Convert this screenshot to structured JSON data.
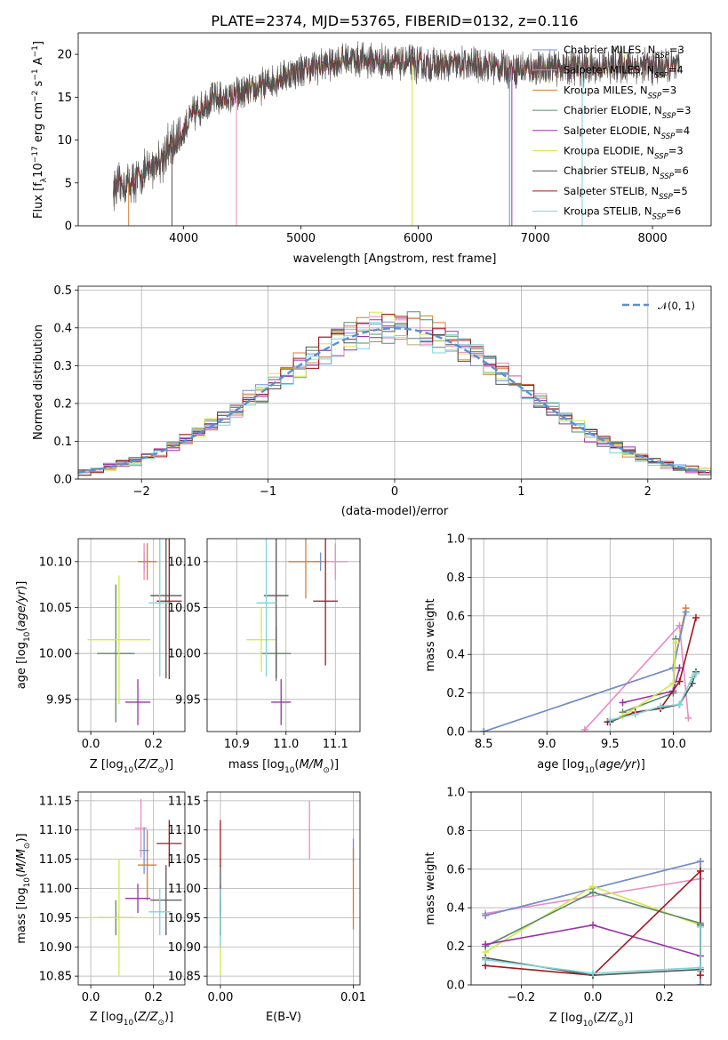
{
  "title": "PLATE=2374, MJD=53765, FIBERID=0132, z=0.116",
  "colors": {
    "Chabrier MILES": "#6f8fd6",
    "Salpeter MILES": "#e88cc5",
    "Kroupa MILES": "#d67f2e",
    "Chabrier ELODIE": "#5b8a6b",
    "Salpeter ELODIE": "#9933aa",
    "Kroupa ELODIE": "#d4e84a",
    "Chabrier STELIB": "#555555",
    "Salpeter STELIB": "#a01820",
    "Kroupa STELIB": "#7fd3d8"
  },
  "chart_data": [
    {
      "id": "spectrum",
      "type": "line",
      "title": "PLATE=2374, MJD=53765, FIBERID=0132, z=0.116",
      "xlabel": "wavelength [Angstrom, rest frame]",
      "ylabel": "Flux [f_λ 10^-17 erg cm^-2 s^-1 A^-1]",
      "xlim": [
        3100,
        8500
      ],
      "ylim": [
        0,
        22.5
      ],
      "xticks": [
        4000,
        5000,
        6000,
        7000,
        8000
      ],
      "yticks": [
        0,
        5,
        10,
        15,
        20
      ],
      "legend_position": "top-right",
      "legend": [
        {
          "name": "Chabrier MILES",
          "nssp": "3"
        },
        {
          "name": "Salpeter MILES",
          "nssp": "4"
        },
        {
          "name": "Kroupa MILES",
          "nssp": "3"
        },
        {
          "name": "Chabrier ELODIE",
          "nssp": "3"
        },
        {
          "name": "Salpeter ELODIE",
          "nssp": "4"
        },
        {
          "name": "Kroupa ELODIE",
          "nssp": "3"
        },
        {
          "name": "Chabrier STELIB",
          "nssp": "6"
        },
        {
          "name": "Salpeter STELIB",
          "nssp": "5"
        },
        {
          "name": "Kroupa STELIB",
          "nssp": "6"
        }
      ],
      "envelope": {
        "x": [
          3400,
          3550,
          3700,
          3850,
          3950,
          4050,
          4200,
          4400,
          4600,
          4800,
          5000,
          5200,
          5400,
          5600,
          5800,
          6000,
          6200,
          6400,
          6600,
          6800,
          7000,
          7200,
          7400,
          7600,
          7800,
          8000,
          8200
        ],
        "y": [
          4.5,
          5.0,
          6.5,
          8.5,
          10.0,
          12.5,
          14.5,
          15.0,
          15.8,
          17.2,
          18.2,
          18.8,
          19.5,
          19.3,
          19.0,
          18.8,
          18.6,
          18.8,
          18.7,
          18.3,
          18.3,
          18.5,
          18.4,
          18.6,
          18.8,
          18.5,
          18.4
        ]
      },
      "drops": [
        3530,
        3900,
        4450,
        5950,
        6780,
        6800,
        7400
      ]
    },
    {
      "id": "residuals",
      "type": "line",
      "xlabel": "(data-model)/error",
      "ylabel": "Normed distribution",
      "xlim": [
        -2.5,
        2.5
      ],
      "ylim": [
        0,
        0.51
      ],
      "xticks": [
        -2,
        -1,
        0,
        1,
        2
      ],
      "yticks": [
        0.0,
        0.1,
        0.2,
        0.3,
        0.4,
        0.5
      ],
      "grid": true,
      "legend_position": "top-right",
      "legend": [
        "𝒩(0, 1)"
      ],
      "bins": 50
    },
    {
      "id": "age-vs-Z",
      "type": "scatter",
      "xlabel": "Z [log10(Z/Z⊙)]",
      "ylabel": "age [log10(age/yr)]",
      "xlim": [
        -0.04,
        0.3
      ],
      "ylim": [
        9.915,
        10.125
      ],
      "xticks": [
        0.0,
        0.2
      ],
      "yticks": [
        9.95,
        10.0,
        10.05,
        10.1
      ],
      "grid": true,
      "points": [
        {
          "series": "Chabrier MILES",
          "x": 0.17,
          "y": 10.1,
          "xerr": 0.03,
          "yerr": 0.01
        },
        {
          "series": "Salpeter MILES",
          "x": 0.17,
          "y": 10.1,
          "xerr": 0.04,
          "yerr": 0.02
        },
        {
          "series": "Kroupa MILES",
          "x": 0.18,
          "y": 10.1,
          "xerr": 0.06,
          "yerr": 0.02
        },
        {
          "series": "Chabrier ELODIE",
          "x": 0.08,
          "y": 10.0,
          "xerr": 0.12,
          "yerr": 0.075
        },
        {
          "series": "Salpeter ELODIE",
          "x": 0.15,
          "y": 9.947,
          "xerr": 0.08,
          "yerr": 0.025
        },
        {
          "series": "Kroupa ELODIE",
          "x": 0.09,
          "y": 10.015,
          "xerr": 0.2,
          "yerr": 0.07
        },
        {
          "series": "Chabrier STELIB",
          "x": 0.24,
          "y": 10.063,
          "xerr": 0.1,
          "yerr": 0.09
        },
        {
          "series": "Salpeter STELIB",
          "x": 0.25,
          "y": 10.057,
          "xerr": 0.08,
          "yerr": 0.085
        },
        {
          "series": "Kroupa STELIB",
          "x": 0.22,
          "y": 10.055,
          "xerr": 0.07,
          "yerr": 0.08
        }
      ]
    },
    {
      "id": "age-vs-mass",
      "type": "scatter",
      "xlabel": "mass [log10(M/M⊙)]",
      "ylabel": "",
      "xlim": [
        10.84,
        11.15
      ],
      "ylim": [
        9.915,
        10.125
      ],
      "xticks": [
        10.9,
        11.0,
        11.1
      ],
      "yticks": [
        9.95,
        10.0,
        10.05,
        10.1
      ],
      "grid": true,
      "points": [
        {
          "series": "Chabrier MILES",
          "x": 11.07,
          "y": 10.1,
          "xerr": 0.02,
          "yerr": 0.01
        },
        {
          "series": "Salpeter MILES",
          "x": 11.1,
          "y": 10.1,
          "xerr": 0.05,
          "yerr": 0.02
        },
        {
          "series": "Kroupa MILES",
          "x": 11.04,
          "y": 10.1,
          "xerr": 0.07,
          "yerr": 0.04
        },
        {
          "series": "Chabrier ELODIE",
          "x": 10.98,
          "y": 10.0,
          "xerr": 0.06,
          "yerr": 0.03
        },
        {
          "series": "Salpeter ELODIE",
          "x": 10.99,
          "y": 9.947,
          "xerr": 0.04,
          "yerr": 0.025
        },
        {
          "series": "Kroupa ELODIE",
          "x": 10.95,
          "y": 10.015,
          "xerr": 0.06,
          "yerr": 0.035
        },
        {
          "series": "Chabrier STELIB",
          "x": 10.98,
          "y": 10.063,
          "xerr": 0.05,
          "yerr": 0.09
        },
        {
          "series": "Salpeter STELIB",
          "x": 11.08,
          "y": 10.057,
          "xerr": 0.05,
          "yerr": 0.07
        },
        {
          "series": "Kroupa STELIB",
          "x": 10.96,
          "y": 10.055,
          "xerr": 0.04,
          "yerr": 0.08
        }
      ]
    },
    {
      "id": "weight-vs-age",
      "type": "line",
      "xlabel": "age [log10(age/yr)]",
      "ylabel": "mass weight",
      "xlim": [
        8.4,
        10.3
      ],
      "ylim": [
        0.0,
        1.0
      ],
      "xticks": [
        8.5,
        9.0,
        9.5,
        10.0
      ],
      "yticks": [
        0.0,
        0.2,
        0.4,
        0.6,
        0.8,
        1.0
      ],
      "grid": true,
      "series": [
        {
          "name": "Salpeter MILES",
          "x": [
            9.3,
            10.05,
            10.12
          ],
          "y": [
            0.01,
            0.55,
            0.07
          ]
        },
        {
          "name": "Kroupa MILES",
          "x": [
            8.5,
            10.0,
            10.1
          ],
          "y": [
            0.0,
            0.33,
            0.64
          ]
        },
        {
          "name": "Chabrier MILES",
          "x": [
            8.5,
            10.0,
            10.1
          ],
          "y": [
            0.0,
            0.33,
            0.62
          ]
        },
        {
          "name": "Chabrier ELODIE",
          "x": [
            9.6,
            10.0,
            10.02
          ],
          "y": [
            0.1,
            0.2,
            0.48
          ]
        },
        {
          "name": "Salpeter ELODIE",
          "x": [
            9.6,
            10.0,
            10.05
          ],
          "y": [
            0.15,
            0.21,
            0.33
          ]
        },
        {
          "name": "Kroupa ELODIE",
          "x": [
            9.6,
            10.0,
            10.02
          ],
          "y": [
            0.08,
            0.25,
            0.46
          ]
        },
        {
          "name": "Chabrier STELIB",
          "x": [
            9.5,
            9.7,
            9.9,
            10.05,
            10.15,
            10.18
          ],
          "y": [
            0.05,
            0.1,
            0.12,
            0.14,
            0.25,
            0.31
          ]
        },
        {
          "name": "Salpeter STELIB",
          "x": [
            9.48,
            9.7,
            9.9,
            10.05,
            10.18
          ],
          "y": [
            0.05,
            0.1,
            0.12,
            0.26,
            0.59
          ]
        },
        {
          "name": "Kroupa STELIB",
          "x": [
            9.5,
            9.7,
            9.9,
            10.05,
            10.15,
            10.18
          ],
          "y": [
            0.06,
            0.09,
            0.13,
            0.14,
            0.28,
            0.3
          ]
        }
      ]
    },
    {
      "id": "mass-vs-Z",
      "type": "scatter",
      "xlabel": "Z [log10(Z/Z⊙)]",
      "ylabel": "mass [log10(M/M⊙)]",
      "xlim": [
        -0.04,
        0.3
      ],
      "ylim": [
        10.835,
        11.165
      ],
      "xticks": [
        0.0,
        0.2
      ],
      "yticks": [
        10.85,
        10.9,
        10.95,
        11.0,
        11.05,
        11.1,
        11.15
      ],
      "grid": true,
      "points": [
        {
          "series": "Chabrier MILES",
          "x": 0.17,
          "y": 11.065,
          "xerr": 0.03,
          "yerr": 0.04
        },
        {
          "series": "Salpeter MILES",
          "x": 0.16,
          "y": 11.103,
          "xerr": 0.04,
          "yerr": 0.05
        },
        {
          "series": "Kroupa MILES",
          "x": 0.18,
          "y": 11.04,
          "xerr": 0.06,
          "yerr": 0.06
        },
        {
          "series": "Chabrier ELODIE",
          "x": 0.08,
          "y": 10.95,
          "xerr": 0.12,
          "yerr": 0.03
        },
        {
          "series": "Salpeter ELODIE",
          "x": 0.15,
          "y": 10.983,
          "xerr": 0.08,
          "yerr": 0.025
        },
        {
          "series": "Kroupa ELODIE",
          "x": 0.09,
          "y": 10.95,
          "xerr": 0.2,
          "yerr": 0.1
        },
        {
          "series": "Chabrier STELIB",
          "x": 0.24,
          "y": 10.98,
          "xerr": 0.1,
          "yerr": 0.06
        },
        {
          "series": "Salpeter STELIB",
          "x": 0.25,
          "y": 11.077,
          "xerr": 0.08,
          "yerr": 0.04
        },
        {
          "series": "Kroupa STELIB",
          "x": 0.22,
          "y": 10.96,
          "xerr": 0.07,
          "yerr": 0.04
        }
      ]
    },
    {
      "id": "mass-vs-ebv",
      "type": "scatter",
      "xlabel": "E(B-V)",
      "ylabel": "",
      "xlim": [
        -0.001,
        0.0105
      ],
      "ylim": [
        10.835,
        11.165
      ],
      "xticks": [
        0.0,
        0.01
      ],
      "yticks": [
        10.85,
        10.9,
        10.95,
        11.0,
        11.05,
        11.1,
        11.15
      ],
      "grid": true,
      "points": [
        {
          "series": "Chabrier MILES",
          "x": 0.01,
          "y": 11.065,
          "xerr": 0,
          "yerr": 0.02
        },
        {
          "series": "Salpeter MILES",
          "x": 0.0067,
          "y": 11.1,
          "xerr": 0,
          "yerr": 0.05
        },
        {
          "series": "Kroupa MILES",
          "x": 0.01,
          "y": 11.0,
          "xerr": 0,
          "yerr": 0.07
        },
        {
          "series": "Chabrier ELODIE",
          "x": 0.0,
          "y": 10.95,
          "xerr": 0,
          "yerr": 0.03
        },
        {
          "series": "Salpeter ELODIE",
          "x": 0.0,
          "y": 10.98,
          "xerr": 0,
          "yerr": 0.025
        },
        {
          "series": "Kroupa ELODIE",
          "x": 0.0,
          "y": 10.9,
          "xerr": 0,
          "yerr": 0.05
        },
        {
          "series": "Chabrier STELIB",
          "x": 0.0,
          "y": 10.98,
          "xerr": 0,
          "yerr": 0.06
        },
        {
          "series": "Salpeter STELIB",
          "x": 0.0,
          "y": 11.077,
          "xerr": 0,
          "yerr": 0.04
        },
        {
          "series": "Kroupa STELIB",
          "x": 0.0,
          "y": 10.95,
          "xerr": 0,
          "yerr": 0.05
        }
      ]
    },
    {
      "id": "weight-vs-Z",
      "type": "line",
      "xlabel": "Z [log10(Z/Z⊙)]",
      "ylabel": "mass weight",
      "xlim": [
        -0.34,
        0.33
      ],
      "ylim": [
        0.0,
        1.0
      ],
      "xticks": [
        -0.2,
        0.0,
        0.2
      ],
      "yticks": [
        0.0,
        0.2,
        0.4,
        0.6,
        0.8,
        1.0
      ],
      "grid": true,
      "series": [
        {
          "name": "Kroupa MILES",
          "x": [
            -0.3,
            0.3,
            0.3
          ],
          "y": [
            0.36,
            0.64,
            0.0
          ]
        },
        {
          "name": "Salpeter MILES",
          "x": [
            -0.3,
            0.3,
            0.3
          ],
          "y": [
            0.37,
            0.55,
            0.07
          ]
        },
        {
          "name": "Chabrier MILES",
          "x": [
            -0.3,
            0.3,
            0.3
          ],
          "y": [
            0.36,
            0.64,
            0.0
          ]
        },
        {
          "name": "Kroupa ELODIE",
          "x": [
            -0.3,
            0.0,
            0.3
          ],
          "y": [
            0.17,
            0.51,
            0.31
          ]
        },
        {
          "name": "Chabrier ELODIE",
          "x": [
            -0.3,
            0.0,
            0.3
          ],
          "y": [
            0.2,
            0.48,
            0.32
          ]
        },
        {
          "name": "Salpeter ELODIE",
          "x": [
            -0.3,
            0.0,
            0.3
          ],
          "y": [
            0.21,
            0.31,
            0.15
          ]
        },
        {
          "name": "Salpeter STELIB",
          "x": [
            -0.3,
            0.0,
            0.3,
            0.3
          ],
          "y": [
            0.1,
            0.05,
            0.59,
            0.05
          ]
        },
        {
          "name": "Chabrier STELIB",
          "x": [
            -0.3,
            0.0,
            0.3,
            0.3
          ],
          "y": [
            0.14,
            0.05,
            0.08,
            0.31
          ]
        },
        {
          "name": "Kroupa STELIB",
          "x": [
            -0.3,
            0.0,
            0.3,
            0.3
          ],
          "y": [
            0.13,
            0.06,
            0.09,
            0.3
          ]
        }
      ]
    }
  ]
}
